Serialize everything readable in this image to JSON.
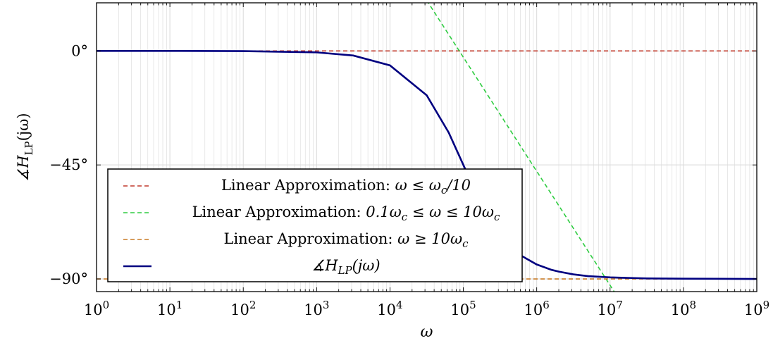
{
  "chart_data": {
    "type": "line",
    "xscale": "log",
    "xlim": [
      1,
      1000000000
    ],
    "ylim": [
      -95,
      19
    ],
    "xlabel": "ω",
    "ylabel": "∡H_LP(jω)",
    "xticks": [
      {
        "value": 1,
        "base": "10",
        "exp": "0"
      },
      {
        "value": 10,
        "base": "10",
        "exp": "1"
      },
      {
        "value": 100,
        "base": "10",
        "exp": "2"
      },
      {
        "value": 1000,
        "base": "10",
        "exp": "3"
      },
      {
        "value": 10000,
        "base": "10",
        "exp": "4"
      },
      {
        "value": 100000,
        "base": "10",
        "exp": "5"
      },
      {
        "value": 1000000,
        "base": "10",
        "exp": "6"
      },
      {
        "value": 10000000,
        "base": "10",
        "exp": "7"
      },
      {
        "value": 100000000,
        "base": "10",
        "exp": "8"
      },
      {
        "value": 1000000000,
        "base": "10",
        "exp": "9"
      }
    ],
    "yticks": [
      {
        "value": 0,
        "label": "0°"
      },
      {
        "value": -45,
        "label": "−45°"
      },
      {
        "value": -90,
        "label": "−90°"
      }
    ],
    "grid": true,
    "legend_position": "bottom-left",
    "series": [
      {
        "name": "Linear Approximation: ω ≤ ω_c/10",
        "style": "dashed",
        "color": "#c0392b",
        "x": [
          1,
          1000000000
        ],
        "y": [
          0,
          0
        ]
      },
      {
        "name": "Linear Approximation: 0.1ω_c ≤ ω ≤ 10ω_c",
        "style": "dashed",
        "color": "#2ecc40",
        "x": [
          31622,
          12589254
        ],
        "y": [
          20,
          -97
        ]
      },
      {
        "name": "Linear Approximation: ω ≥ 10ω_c",
        "style": "dashed",
        "color": "#c87a24",
        "x": [
          1,
          1000000000
        ],
        "y": [
          -90,
          -90
        ]
      },
      {
        "name": "∡H_LP(jω)",
        "style": "solid",
        "color": "#000080",
        "x": [
          1,
          10,
          100,
          1000,
          3162,
          10000,
          31623,
          63096,
          100000,
          158489,
          199526,
          316228,
          501187,
          630957,
          1000000,
          1584893,
          1995262,
          3162278,
          5011872,
          10000000,
          31622777,
          100000000,
          1000000000
        ],
        "y": [
          0,
          0,
          -0.06,
          -0.57,
          -1.8,
          -5.7,
          -17.5,
          -32.2,
          -45,
          -57.8,
          -63.4,
          -72.5,
          -78.7,
          -81.0,
          -84.3,
          -86.4,
          -87.1,
          -88.2,
          -88.9,
          -89.4,
          -89.8,
          -89.9,
          -90
        ]
      }
    ]
  },
  "legend": {
    "items": [
      {
        "prefix": "Linear Approximation: ",
        "math": "ω ≤ ω",
        "sub": "c",
        "suffix": "/10"
      },
      {
        "prefix": "Linear Approximation: ",
        "math": "0.1ω",
        "sub": "c",
        "suffix": " ≤ ω ≤ 10ω",
        "sub2": "c"
      },
      {
        "prefix": "Linear Approximation: ",
        "math": "ω ≥ 10ω",
        "sub": "c",
        "suffix": ""
      },
      {
        "prefix": "",
        "math": "∡H",
        "sub": "LP",
        "suffix": "(jω)"
      }
    ]
  },
  "colors": {
    "grid": "#d9d9d9",
    "axis": "#000000",
    "background": "#ffffff"
  }
}
